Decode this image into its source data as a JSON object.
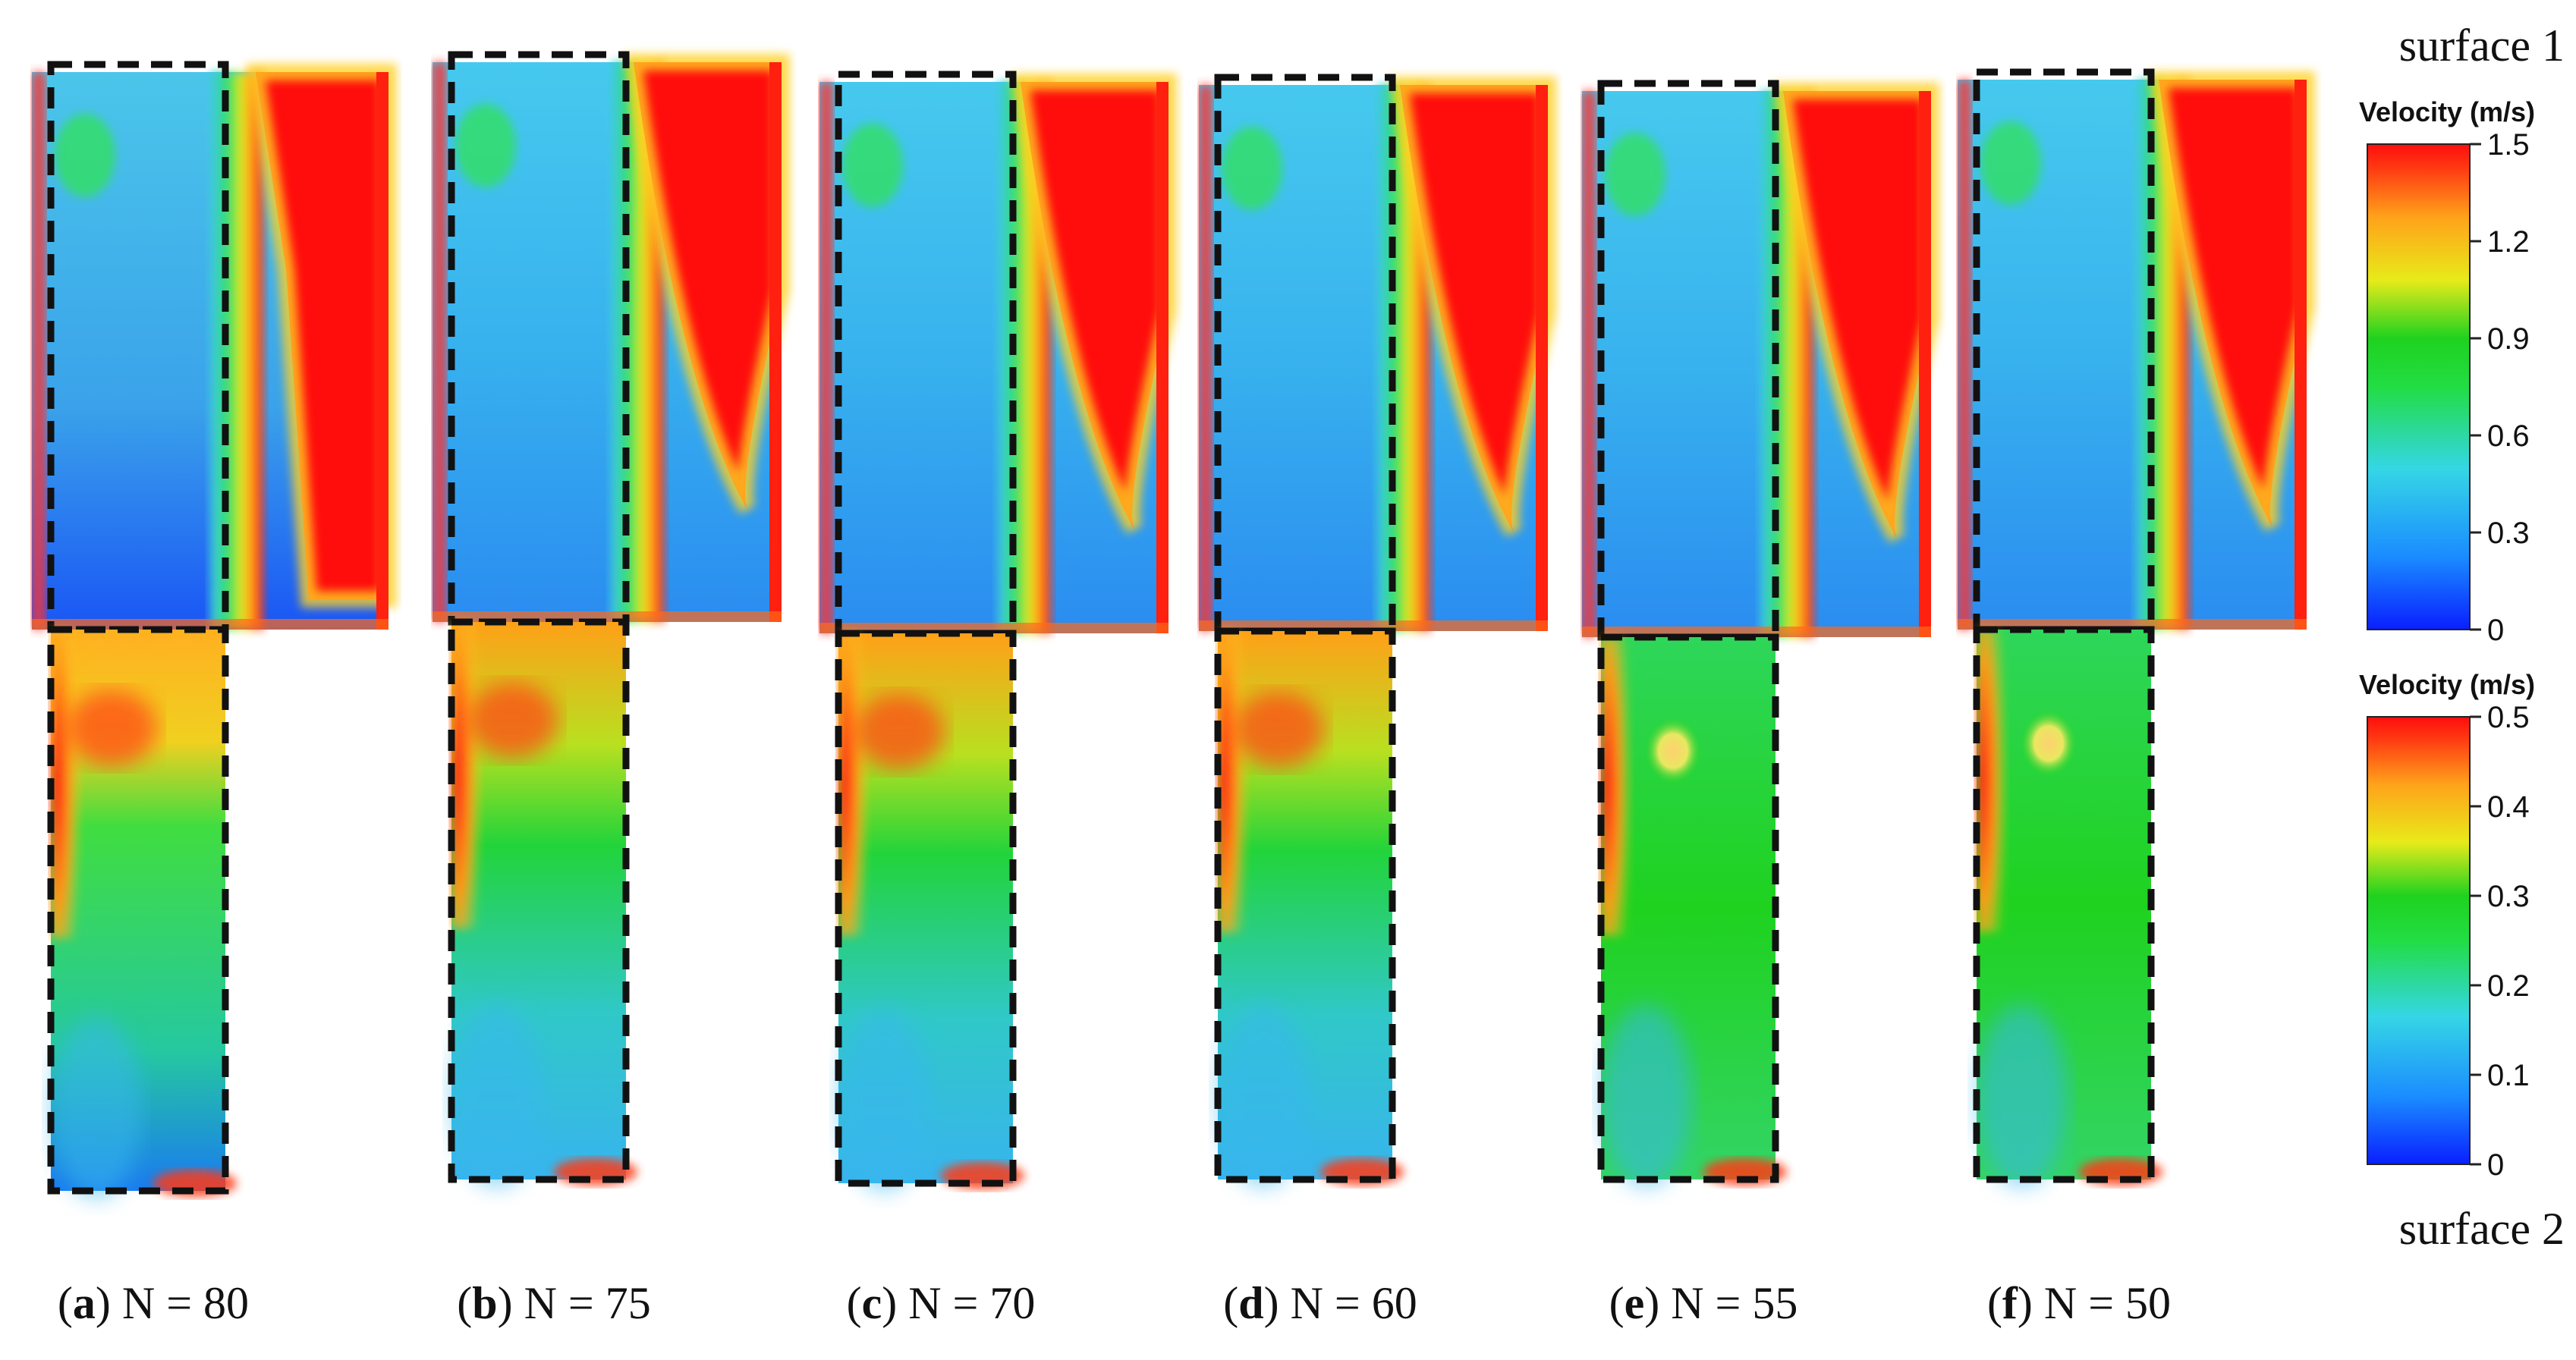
{
  "legend": {
    "surface1_label": "surface 1",
    "surface2_label": "surface 2",
    "colorbar_top": {
      "title": "Velocity (m/s)",
      "ticks": [
        "1.5",
        "1.2",
        "0.9",
        "0.6",
        "0.3",
        "0"
      ],
      "min": 0,
      "max": 1.5
    },
    "colorbar_bottom": {
      "title": "Velocity (m/s)",
      "ticks": [
        "0.5",
        "0.4",
        "0.3",
        "0.2",
        "0.1",
        "0"
      ],
      "min": 0,
      "max": 0.5
    }
  },
  "colormap": [
    "#0a1fff",
    "#1a8cff",
    "#35d6e6",
    "#33e066",
    "#1fd21f",
    "#e8ea1a",
    "#ffa21a",
    "#ff3a12",
    "#ff0d0d"
  ],
  "panels": [
    {
      "letter": "a",
      "caption": " N = 80",
      "n": 80
    },
    {
      "letter": "b",
      "caption": " N = 75",
      "n": 75
    },
    {
      "letter": "c",
      "caption": " N = 70",
      "n": 70
    },
    {
      "letter": "d",
      "caption": " N = 60",
      "n": 60
    },
    {
      "letter": "e",
      "caption": " N = 55",
      "n": 55
    },
    {
      "letter": "f",
      "caption": " N = 50",
      "n": 50
    }
  ],
  "paren_open": "(",
  "paren_close": ")"
}
